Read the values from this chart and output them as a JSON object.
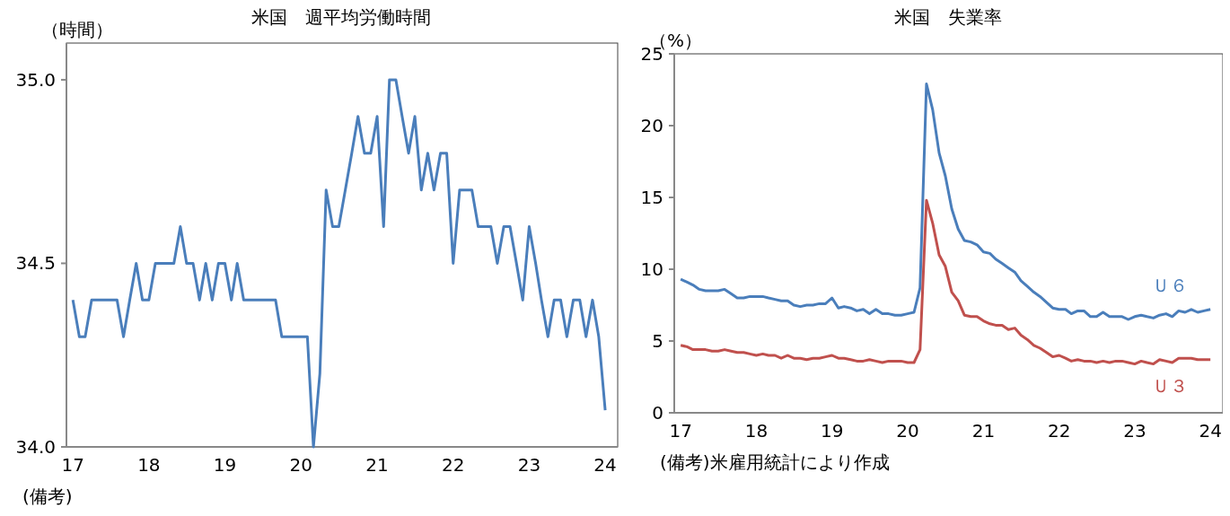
{
  "chart_data": [
    {
      "type": "line",
      "title": "米国　週平均労働時間",
      "ylabel": "（時間）",
      "annotations": [
        "(備考)"
      ],
      "x": [
        "2017-01",
        "2017-02",
        "2017-03",
        "2017-04",
        "2017-05",
        "2017-06",
        "2017-07",
        "2017-08",
        "2017-09",
        "2017-10",
        "2017-11",
        "2017-12",
        "2018-01",
        "2018-02",
        "2018-03",
        "2018-04",
        "2018-05",
        "2018-06",
        "2018-07",
        "2018-08",
        "2018-09",
        "2018-10",
        "2018-11",
        "2018-12",
        "2019-01",
        "2019-02",
        "2019-03",
        "2019-04",
        "2019-05",
        "2019-06",
        "2019-07",
        "2019-08",
        "2019-09",
        "2019-10",
        "2019-11",
        "2019-12",
        "2020-01",
        "2020-02",
        "2020-03",
        "2020-04",
        "2020-05",
        "2020-06",
        "2020-07",
        "2020-08",
        "2020-09",
        "2020-10",
        "2020-11",
        "2020-12",
        "2021-01",
        "2021-02",
        "2021-03",
        "2021-04",
        "2021-05",
        "2021-06",
        "2021-07",
        "2021-08",
        "2021-09",
        "2021-10",
        "2021-11",
        "2021-12",
        "2022-01",
        "2022-02",
        "2022-03",
        "2022-04",
        "2022-05",
        "2022-06",
        "2022-07",
        "2022-08",
        "2022-09",
        "2022-10",
        "2022-11",
        "2022-12",
        "2023-01",
        "2023-02",
        "2023-03",
        "2023-04",
        "2023-05",
        "2023-06",
        "2023-07",
        "2023-08",
        "2023-09",
        "2023-10",
        "2023-11",
        "2023-12",
        "2024-01"
      ],
      "series": [
        {
          "color": "#4a7ebb",
          "values": [
            34.4,
            34.3,
            34.3,
            34.4,
            34.4,
            34.4,
            34.4,
            34.4,
            34.3,
            34.4,
            34.5,
            34.4,
            34.4,
            34.5,
            34.5,
            34.5,
            34.5,
            34.6,
            34.5,
            34.5,
            34.4,
            34.5,
            34.4,
            34.5,
            34.5,
            34.4,
            34.5,
            34.4,
            34.4,
            34.4,
            34.4,
            34.4,
            34.4,
            34.3,
            34.3,
            34.3,
            34.3,
            34.3,
            34.0,
            34.2,
            34.7,
            34.6,
            34.6,
            34.7,
            34.8,
            34.9,
            34.8,
            34.8,
            34.9,
            34.6,
            35.0,
            35.0,
            34.9,
            34.8,
            34.9,
            34.7,
            34.8,
            34.7,
            34.8,
            34.8,
            34.5,
            34.7,
            34.7,
            34.7,
            34.6,
            34.6,
            34.6,
            34.5,
            34.6,
            34.6,
            34.5,
            34.4,
            34.6,
            34.5,
            34.4,
            34.3,
            34.4,
            34.4,
            34.3,
            34.4,
            34.4,
            34.3,
            34.4,
            34.3,
            34.1
          ]
        }
      ],
      "xlim": [
        "2016-12-01",
        "2024-03-01"
      ],
      "xticks": [
        {
          "value": "2017-01-01",
          "label": "17"
        },
        {
          "value": "2018-01-01",
          "label": "18"
        },
        {
          "value": "2019-01-01",
          "label": "19"
        },
        {
          "value": "2020-01-01",
          "label": "20"
        },
        {
          "value": "2021-01-01",
          "label": "21"
        },
        {
          "value": "2022-01-01",
          "label": "22"
        },
        {
          "value": "2023-01-01",
          "label": "23"
        },
        {
          "value": "2024-01-01",
          "label": "24"
        }
      ],
      "ylim": [
        34,
        35.1
      ],
      "yticks": [
        {
          "value": 34,
          "label": "34.0"
        },
        34.5,
        {
          "value": 35,
          "label": "35.0"
        }
      ],
      "grid": false,
      "legend": false
    },
    {
      "type": "line",
      "title": "米国　失業率",
      "ylabel": "（%）",
      "annotations": [
        "(備考)米雇用統計により作成"
      ],
      "x": [
        "2017-01",
        "2017-02",
        "2017-03",
        "2017-04",
        "2017-05",
        "2017-06",
        "2017-07",
        "2017-08",
        "2017-09",
        "2017-10",
        "2017-11",
        "2017-12",
        "2018-01",
        "2018-02",
        "2018-03",
        "2018-04",
        "2018-05",
        "2018-06",
        "2018-07",
        "2018-08",
        "2018-09",
        "2018-10",
        "2018-11",
        "2018-12",
        "2019-01",
        "2019-02",
        "2019-03",
        "2019-04",
        "2019-05",
        "2019-06",
        "2019-07",
        "2019-08",
        "2019-09",
        "2019-10",
        "2019-11",
        "2019-12",
        "2020-01",
        "2020-02",
        "2020-03",
        "2020-04",
        "2020-05",
        "2020-06",
        "2020-07",
        "2020-08",
        "2020-09",
        "2020-10",
        "2020-11",
        "2020-12",
        "2021-01",
        "2021-02",
        "2021-03",
        "2021-04",
        "2021-05",
        "2021-06",
        "2021-07",
        "2021-08",
        "2021-09",
        "2021-10",
        "2021-11",
        "2021-12",
        "2022-01",
        "2022-02",
        "2022-03",
        "2022-04",
        "2022-05",
        "2022-06",
        "2022-07",
        "2022-08",
        "2022-09",
        "2022-10",
        "2022-11",
        "2022-12",
        "2023-01",
        "2023-02",
        "2023-03",
        "2023-04",
        "2023-05",
        "2023-06",
        "2023-07",
        "2023-08",
        "2023-09",
        "2023-10",
        "2023-11",
        "2023-12",
        "2024-01"
      ],
      "series": [
        {
          "name": "Ｕ６",
          "color": "#4a7ebb",
          "values": [
            9.3,
            9.1,
            8.9,
            8.6,
            8.5,
            8.5,
            8.5,
            8.6,
            8.3,
            8.0,
            8.0,
            8.1,
            8.1,
            8.1,
            8.0,
            7.9,
            7.8,
            7.8,
            7.5,
            7.4,
            7.5,
            7.5,
            7.6,
            7.6,
            8.0,
            7.3,
            7.4,
            7.3,
            7.1,
            7.2,
            6.9,
            7.2,
            6.9,
            6.9,
            6.8,
            6.8,
            6.9,
            7.0,
            8.7,
            22.9,
            21.1,
            18.1,
            16.5,
            14.2,
            12.8,
            12.0,
            11.9,
            11.7,
            11.2,
            11.1,
            10.7,
            10.4,
            10.1,
            9.8,
            9.2,
            8.8,
            8.4,
            8.1,
            7.7,
            7.3,
            7.2,
            7.2,
            6.9,
            7.1,
            7.1,
            6.7,
            6.7,
            7.0,
            6.7,
            6.7,
            6.7,
            6.5,
            6.7,
            6.8,
            6.7,
            6.6,
            6.8,
            6.9,
            6.7,
            7.1,
            7.0,
            7.2,
            7.0,
            7.1,
            7.2
          ]
        },
        {
          "name": "Ｕ３",
          "color": "#c0504d",
          "values": [
            4.7,
            4.6,
            4.4,
            4.4,
            4.4,
            4.3,
            4.3,
            4.4,
            4.3,
            4.2,
            4.2,
            4.1,
            4.0,
            4.1,
            4.0,
            4.0,
            3.8,
            4.0,
            3.8,
            3.8,
            3.7,
            3.8,
            3.8,
            3.9,
            4.0,
            3.8,
            3.8,
            3.7,
            3.6,
            3.6,
            3.7,
            3.6,
            3.5,
            3.6,
            3.6,
            3.6,
            3.5,
            3.5,
            4.4,
            14.8,
            13.2,
            11.0,
            10.2,
            8.4,
            7.8,
            6.8,
            6.7,
            6.7,
            6.4,
            6.2,
            6.1,
            6.1,
            5.8,
            5.9,
            5.4,
            5.1,
            4.7,
            4.5,
            4.2,
            3.9,
            4.0,
            3.8,
            3.6,
            3.7,
            3.6,
            3.6,
            3.5,
            3.6,
            3.5,
            3.6,
            3.6,
            3.5,
            3.4,
            3.6,
            3.5,
            3.4,
            3.7,
            3.6,
            3.5,
            3.8,
            3.8,
            3.8,
            3.7,
            3.7,
            3.7
          ]
        }
      ],
      "xlim": [
        "2016-12-01",
        "2024-03-01"
      ],
      "xticks": [
        {
          "value": "2017-01-01",
          "label": "17"
        },
        {
          "value": "2018-01-01",
          "label": "18"
        },
        {
          "value": "2019-01-01",
          "label": "19"
        },
        {
          "value": "2020-01-01",
          "label": "20"
        },
        {
          "value": "2021-01-01",
          "label": "21"
        },
        {
          "value": "2022-01-01",
          "label": "22"
        },
        {
          "value": "2023-01-01",
          "label": "23"
        },
        {
          "value": "2024-01-01",
          "label": "24"
        }
      ],
      "ylim": [
        0,
        25
      ],
      "yticks": [
        0,
        5,
        10,
        15,
        20,
        25
      ],
      "grid": false,
      "legend": false
    }
  ]
}
